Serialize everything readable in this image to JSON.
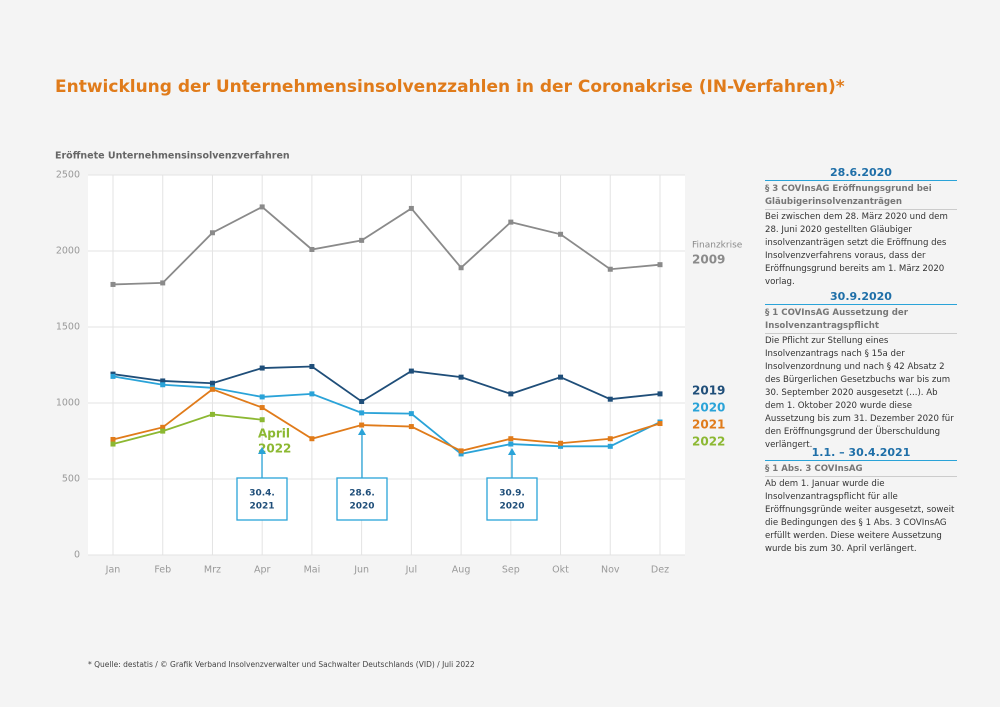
{
  "chart_data": {
    "type": "line",
    "title": "Entwicklung der Unternehmensinsolvenzzahlen in der Coronakrise (IN-Verfahren)*",
    "y_label": "Eröffnete Unternehmensinsolvenzverfahren",
    "categories": [
      "Jan",
      "Feb",
      "Mrz",
      "Apr",
      "Mai",
      "Jun",
      "Jul",
      "Aug",
      "Sep",
      "Okt",
      "Nov",
      "Dez"
    ],
    "series": [
      {
        "name": "2009",
        "color": "#8a8a8a",
        "values": [
          1780,
          1790,
          2120,
          2290,
          2010,
          2070,
          2280,
          1890,
          2190,
          2110,
          1880,
          1910
        ]
      },
      {
        "name": "2019",
        "color": "#1f4e79",
        "values": [
          1190,
          1145,
          1130,
          1230,
          1240,
          1010,
          1210,
          1170,
          1060,
          1170,
          1025,
          1060
        ]
      },
      {
        "name": "2020",
        "color": "#2aa3d8",
        "values": [
          1175,
          1120,
          1100,
          1040,
          1060,
          935,
          930,
          665,
          730,
          715,
          715,
          875
        ]
      },
      {
        "name": "2021",
        "color": "#e07b1a",
        "values": [
          760,
          840,
          1090,
          970,
          765,
          855,
          845,
          685,
          765,
          735,
          765,
          865
        ]
      },
      {
        "name": "2022",
        "color": "#8cb832",
        "values": [
          730,
          815,
          925,
          890,
          null,
          null,
          null,
          null,
          null,
          null,
          null,
          null
        ]
      }
    ],
    "ylim": [
      0,
      2500
    ],
    "yticks": [
      0,
      500,
      1000,
      1500,
      2000,
      2500
    ],
    "grid": true,
    "series_note": "Finanzkrise",
    "annotation_green": [
      "April",
      "2022"
    ],
    "date_boxes": [
      [
        "30.4.",
        "2021"
      ],
      [
        "28.6.",
        "2020"
      ],
      [
        "30.9.",
        "2020"
      ]
    ]
  },
  "notes": [
    {
      "heading": "28.6.2020",
      "subheading": "§ 3 COVInsAG Eröffnungsgrund bei Gläubigerinsolvenzanträgen",
      "body": "Bei zwischen dem 28. März 2020 und dem 28. Juni 2020 gestellten Gläubiger insolvenzanträgen setzt die Eröffnung des Insolvenzverfahrens voraus, dass der Eröffnungsgrund bereits am 1. März 2020 vorlag."
    },
    {
      "heading": "30.9.2020",
      "subheading": "§ 1 COVInsAG Aussetzung der Insolvenzantragspflicht",
      "body": "Die Pflicht zur Stellung eines Insolvenzantrags nach § 15a der Insolvenzordnung und nach § 42 Absatz 2 des Bürgerlichen Gesetzbuchs war bis zum 30. September 2020 ausgesetzt (...). Ab dem 1. Oktober 2020 wurde diese Aussetzung bis zum 31. Dezember 2020 für den Eröffnungsgrund der Überschuldung verlängert."
    },
    {
      "heading": "1.1. – 30.4.2021",
      "subheading": "§ 1 Abs. 3 COVInsAG",
      "body": "Ab dem 1. Januar wurde die Insolvenzantragspflicht für alle Eröffnungsgründe weiter ausgesetzt, soweit die Bedingungen des § 1 Abs. 3 COVInsAG erfüllt werden. Diese weitere Aussetzung wurde bis zum 30. April verlängert."
    }
  ],
  "footnote": "* Quelle: destatis / © Grafik Verband Insolvenzverwalter und Sachwalter Deutschlands (VID) / Juli 2022"
}
